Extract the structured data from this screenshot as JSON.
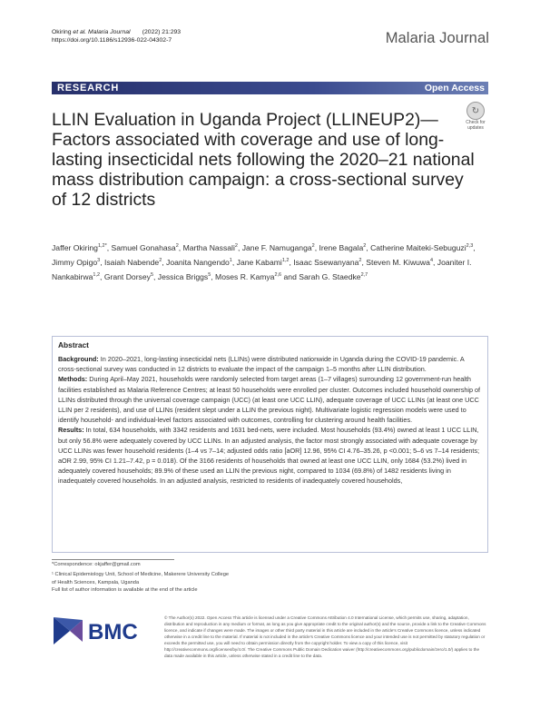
{
  "header": {
    "citation_authors": "Okiring",
    "citation_etal": " et al. Malaria Journal",
    "citation_year": "(2022) 21:293",
    "doi": "https://doi.org/10.1186/s12936-022-04302-7",
    "journal_name": "Malaria Journal"
  },
  "banner": {
    "section": "RESEARCH",
    "open_access": "Open Access"
  },
  "check_updates": {
    "label_line1": "Check for",
    "label_line2": "updates"
  },
  "article": {
    "title": "LLIN Evaluation in Uganda Project (LLINEUP2)—Factors associated with coverage and use of long-lasting insecticidal nets following the 2020–21 national mass distribution campaign: a cross-sectional survey of 12 districts",
    "authors": [
      {
        "name": "Jaffer Okiring",
        "aff": "1,2*"
      },
      {
        "name": "Samuel Gonahasa",
        "aff": "2"
      },
      {
        "name": "Martha Nassali",
        "aff": "2"
      },
      {
        "name": "Jane F. Namuganga",
        "aff": "2"
      },
      {
        "name": "Irene Bagala",
        "aff": "2"
      },
      {
        "name": "Catherine Maiteki-Sebuguzi",
        "aff": "2,3"
      },
      {
        "name": "Jimmy Opigo",
        "aff": "3"
      },
      {
        "name": "Isaiah Nabende",
        "aff": "2"
      },
      {
        "name": "Joanita Nangendo",
        "aff": "1"
      },
      {
        "name": "Jane Kabami",
        "aff": "1,2"
      },
      {
        "name": "Isaac Ssewanyana",
        "aff": "2"
      },
      {
        "name": "Steven M. Kiwuwa",
        "aff": "4"
      },
      {
        "name": "Joaniter I. Nankabirwa",
        "aff": "1,2"
      },
      {
        "name": "Grant Dorsey",
        "aff": "5"
      },
      {
        "name": "Jessica Briggs",
        "aff": "5"
      },
      {
        "name": "Moses R. Kamya",
        "aff": "2,6"
      },
      {
        "name": "Sarah G. Staedke",
        "aff": "2,7"
      }
    ]
  },
  "abstract": {
    "heading": "Abstract",
    "background_label": "Background:",
    "background_text": " In 2020–2021, long-lasting insecticidal nets (LLINs) were distributed nationwide in Uganda during the COVID-19 pandemic. A cross-sectional survey was conducted in 12 districts to evaluate the impact of the campaign 1–5 months after LLIN distribution.",
    "methods_label": "Methods:",
    "methods_text": " During April–May 2021, households were randomly selected from target areas (1–7 villages) surrounding 12 government-run health facilities established as Malaria Reference Centres; at least 50 households were enrolled per cluster. Outcomes included household ownership of LLINs distributed through the universal coverage campaign (UCC) (at least one UCC LLIN), adequate coverage of UCC LLINs (at least one UCC LLIN per 2 residents), and use of LLINs (resident slept under a LLIN the previous night). Multivariate logistic regression models were used to identify household- and individual-level factors associated with outcomes, controlling for clustering around health facilities.",
    "results_label": "Results:",
    "results_text": " In total, 634 households, with 3342 residents and 1631 bed-nets, were included. Most households (93.4%) owned at least 1 UCC LLIN, but only 56.8% were adequately covered by UCC LLINs. In an adjusted analysis, the factor most strongly associated with adequate coverage by UCC LLINs was fewer household residents (1–4 vs 7–14; adjusted odds ratio [aOR] 12.96, 95% CI 4.76–35.26, p <0.001; 5–6 vs 7–14 residents; aOR 2.99, 95% CI 1.21–7.42, p = 0.018). Of the 3166 residents of households that owned at least one UCC LLIN, only 1684 (53.2%) lived in adequately covered households; 89.9% of these used an LLIN the previous night, compared to 1034 (69.8%) of 1482 residents living in inadequately covered households. In an adjusted analysis, restricted to residents of inadequately covered households,"
  },
  "footnotes": {
    "correspondence": "*Correspondence: okjaffer@gmail.com",
    "affiliation_1_line1": "¹ Clinical Epidemiology Unit, School of Medicine, Makerere University College",
    "affiliation_1_line2": "of Health Sciences, Kampala, Uganda",
    "full_list": "Full list of author information is available at the end of the article"
  },
  "publisher": {
    "logo_text": "BMC",
    "license_text": "© The Author(s) 2022. Open Access This article is licensed under a Creative Commons Attribution 4.0 International License, which permits use, sharing, adaptation, distribution and reproduction in any medium or format, as long as you give appropriate credit to the original author(s) and the source, provide a link to the Creative Commons licence, and indicate if changes were made. The images or other third party material in this article are included in the article's Creative Commons licence, unless indicated otherwise in a credit line to the material. If material is not included in the article's Creative Commons licence and your intended use is not permitted by statutory regulation or exceeds the permitted use, you will need to obtain permission directly from the copyright holder. To view a copy of this licence, visit http://creativecommons.org/licenses/by/4.0/. The Creative Commons Public Domain Dedication waiver (http://creativecommons.org/publicdomain/zero/1.0/) applies to the data made available in this article, unless otherwise stated in a credit line to the data."
  },
  "colors": {
    "banner_dark": "#27306b",
    "banner_light": "#6c7fb5",
    "abstract_border": "#b9c0d8",
    "bmc_blue": "#1f3b8c"
  }
}
